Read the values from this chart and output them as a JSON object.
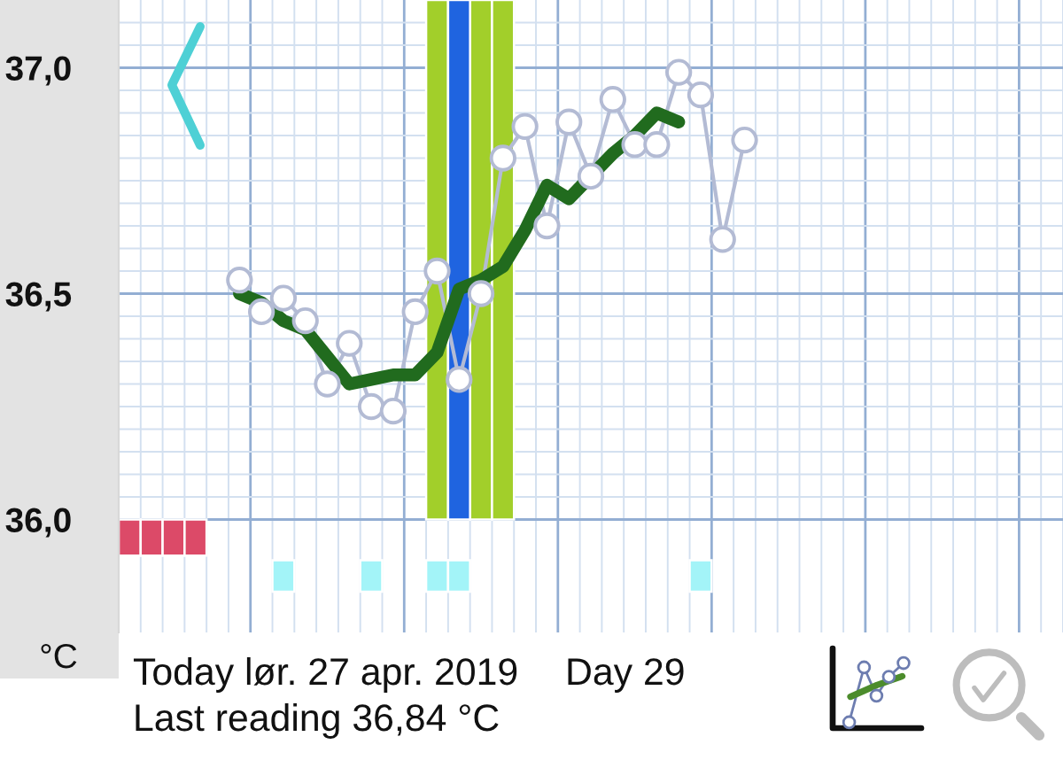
{
  "chart_data": {
    "type": "line",
    "ylabel": "°C",
    "annotations": [
      "Today lør. 27 apr. 2019",
      "Day 29",
      "Last reading 36,84 °C"
    ],
    "categories": [
      null,
      null,
      null,
      null,
      null,
      null,
      null,
      null,
      null,
      null,
      null,
      null,
      null,
      null,
      null,
      null,
      null,
      null,
      null,
      null,
      null,
      null,
      null,
      null,
      null,
      null,
      null,
      null,
      null,
      null,
      null,
      null,
      null,
      null,
      null,
      null,
      null,
      null,
      null,
      null,
      null,
      null,
      null
    ],
    "ylim": [
      35.75,
      37.15
    ],
    "yticks": [
      {
        "value": 36.0,
        "label": "36,0"
      },
      {
        "value": 36.5,
        "label": "36,5"
      },
      {
        "value": 37.0,
        "label": "37,0"
      }
    ],
    "tick_labels": "y",
    "grid": true,
    "series": [
      {
        "type": "bar",
        "color": "#dc4a68",
        "values": [
          0.08,
          0.08,
          0.08,
          0.08,
          null,
          null,
          null,
          null,
          null,
          null,
          null,
          null,
          null,
          null,
          null,
          null,
          null,
          null,
          null,
          null,
          null,
          null,
          null,
          null,
          null,
          null,
          null,
          null,
          null,
          null,
          null,
          null,
          null,
          null,
          null,
          null,
          null,
          null,
          null,
          null,
          null,
          null,
          null
        ],
        "base": [
          35.92,
          35.92,
          35.92,
          35.92,
          null,
          null,
          null,
          null,
          null,
          null,
          null,
          null,
          null,
          null,
          null,
          null,
          null,
          null,
          null,
          null,
          null,
          null,
          null,
          null,
          null,
          null,
          null,
          null,
          null,
          null,
          null,
          null,
          null,
          null,
          null,
          null,
          null,
          null,
          null,
          null,
          null,
          null,
          null
        ]
      },
      {
        "type": "bar",
        "color": "#a3f4f8",
        "values": [
          null,
          null,
          null,
          null,
          null,
          null,
          null,
          0.07,
          null,
          null,
          null,
          0.07,
          null,
          null,
          0.07,
          0.07,
          null,
          null,
          null,
          null,
          null,
          null,
          null,
          null,
          null,
          null,
          0.07,
          null,
          null,
          null,
          null,
          null,
          null,
          null,
          null,
          null,
          null,
          null,
          null,
          null,
          null,
          null,
          null
        ],
        "base": [
          null,
          null,
          null,
          null,
          null,
          null,
          null,
          35.84,
          null,
          null,
          null,
          35.84,
          null,
          null,
          35.84,
          35.84,
          null,
          null,
          null,
          null,
          null,
          null,
          null,
          null,
          null,
          null,
          35.84,
          null,
          null,
          null,
          null,
          null,
          null,
          null,
          null,
          null,
          null,
          null,
          null,
          null,
          null,
          null,
          null
        ]
      },
      {
        "type": "bar",
        "color": "#a2cf2a",
        "values": [
          null,
          null,
          null,
          null,
          null,
          null,
          null,
          null,
          null,
          null,
          null,
          null,
          null,
          null,
          1.15,
          null,
          1.15,
          1.15,
          null,
          null,
          null,
          null,
          null,
          null,
          null,
          null,
          null,
          null,
          null,
          null,
          null,
          null,
          null,
          null,
          null,
          null,
          null,
          null,
          null,
          null,
          null,
          null,
          null
        ],
        "base": [
          null,
          null,
          null,
          null,
          null,
          null,
          null,
          null,
          null,
          null,
          null,
          null,
          null,
          null,
          36.0,
          null,
          36.0,
          36.0,
          null,
          null,
          null,
          null,
          null,
          null,
          null,
          null,
          null,
          null,
          null,
          null,
          null,
          null,
          null,
          null,
          null,
          null,
          null,
          null,
          null,
          null,
          null,
          null,
          null
        ]
      },
      {
        "type": "bar",
        "color": "#1f64e0",
        "values": [
          null,
          null,
          null,
          null,
          null,
          null,
          null,
          null,
          null,
          null,
          null,
          null,
          null,
          null,
          null,
          1.15,
          null,
          null,
          null,
          null,
          null,
          null,
          null,
          null,
          null,
          null,
          null,
          null,
          null,
          null,
          null,
          null,
          null,
          null,
          null,
          null,
          null,
          null,
          null,
          null,
          null,
          null,
          null
        ],
        "base": [
          null,
          null,
          null,
          null,
          null,
          null,
          null,
          null,
          null,
          null,
          null,
          null,
          null,
          null,
          null,
          36.0,
          null,
          null,
          null,
          null,
          null,
          null,
          null,
          null,
          null,
          null,
          null,
          null,
          null,
          null,
          null,
          null,
          null,
          null,
          null,
          null,
          null,
          null,
          null,
          null,
          null,
          null,
          null
        ]
      },
      {
        "marker": "circle",
        "color": "#b3bbd4",
        "values": [
          null,
          null,
          null,
          null,
          null,
          36.53,
          36.46,
          36.49,
          36.44,
          36.3,
          36.39,
          36.25,
          36.24,
          36.46,
          36.55,
          36.31,
          36.5,
          36.8,
          36.87,
          36.65,
          36.88,
          36.76,
          36.93,
          36.83,
          36.83,
          36.99,
          36.94,
          36.62,
          36.84,
          null,
          null,
          null,
          null,
          null,
          null,
          null,
          null,
          null,
          null,
          null,
          null,
          null,
          null
        ]
      },
      {
        "color": "#216b1e",
        "values": [
          null,
          null,
          null,
          null,
          null,
          36.5,
          36.48,
          36.44,
          36.42,
          36.36,
          36.3,
          36.31,
          36.32,
          36.32,
          36.37,
          36.51,
          36.53,
          36.56,
          36.64,
          36.74,
          36.71,
          36.76,
          36.81,
          36.85,
          36.9,
          36.88,
          null,
          null,
          null,
          null,
          null,
          null,
          null,
          null,
          null,
          null,
          null,
          null,
          null,
          null,
          null,
          null,
          null
        ]
      }
    ]
  }
}
